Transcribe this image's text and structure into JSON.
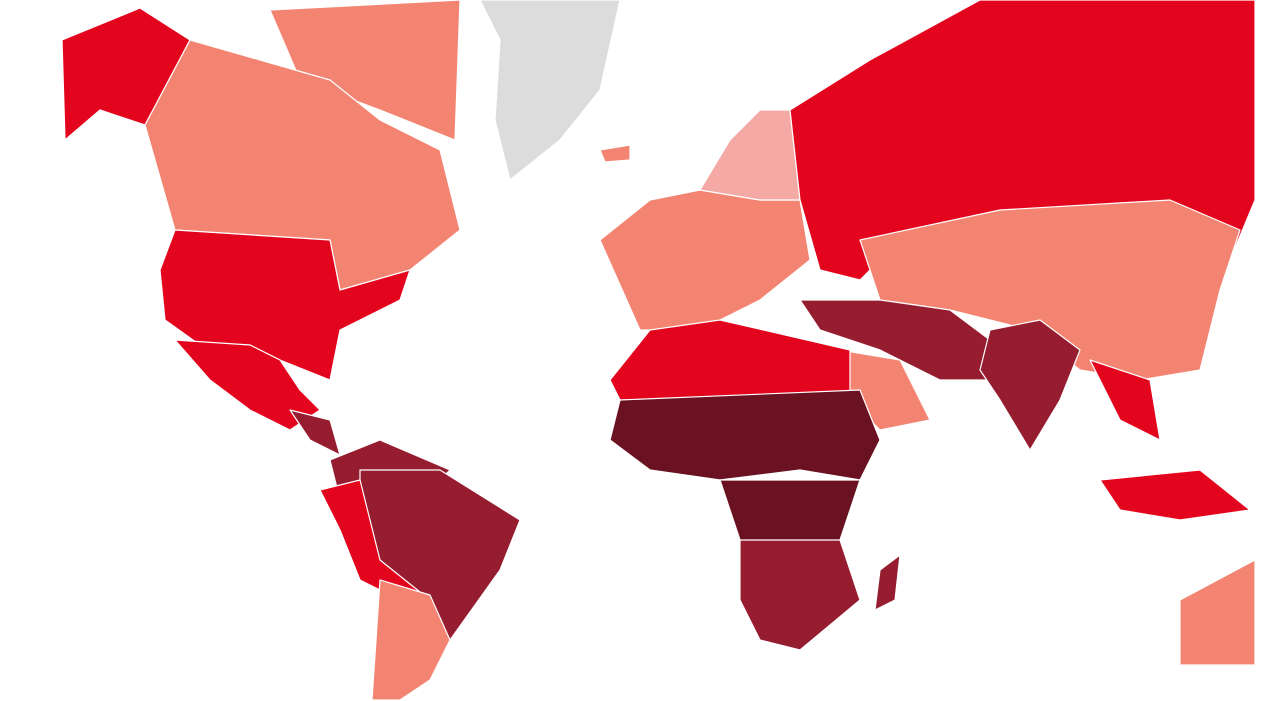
{
  "map": {
    "colors": [
      "#e3051e",
      "#f38471",
      "#961c30",
      "#6b1222",
      "#f4a9a4",
      "#dcdcdc"
    ]
  }
}
